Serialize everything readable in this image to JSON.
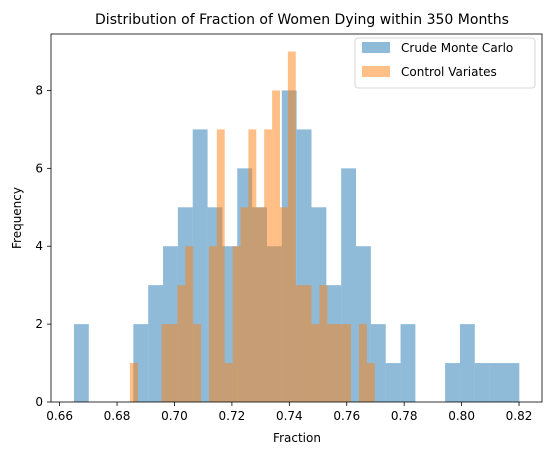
{
  "chart_data": {
    "type": "bar",
    "title": "Distribution of Fraction of Women Dying within 350 Months",
    "xlabel": "Fraction",
    "ylabel": "Frequency",
    "xlim": [
      0.657,
      0.828
    ],
    "ylim": [
      0,
      9.45
    ],
    "xticks": [
      "0.66",
      "0.68",
      "0.70",
      "0.72",
      "0.74",
      "0.76",
      "0.78",
      "0.80",
      "0.82"
    ],
    "xtick_values": [
      0.66,
      0.68,
      0.7,
      0.72,
      0.74,
      0.76,
      0.78,
      0.8,
      0.82
    ],
    "yticks": [
      "0",
      "2",
      "4",
      "6",
      "8"
    ],
    "ytick_values": [
      0,
      2,
      4,
      6,
      8
    ],
    "grid": false,
    "legend_position": "top-right",
    "series": [
      {
        "name": "Crude Monte Carlo",
        "color": "#1f77b4",
        "bin_start": 0.665,
        "bin_width": 0.00517,
        "counts": [
          2,
          0,
          0,
          0,
          2,
          3,
          4,
          5,
          7,
          5,
          4,
          6,
          5,
          4,
          8,
          7,
          5,
          3,
          6,
          4,
          2,
          1,
          2,
          0,
          0,
          1,
          2,
          1,
          1,
          1
        ]
      },
      {
        "name": "Control Variates",
        "color": "#ff7f0e",
        "bin_start": 0.6845,
        "bin_width": 0.00275,
        "counts": [
          1,
          0,
          0,
          0,
          2,
          2,
          3,
          4,
          2,
          0,
          4,
          7,
          1,
          4,
          5,
          7,
          5,
          7,
          8,
          5,
          9,
          3,
          3,
          2,
          3,
          2,
          2,
          2,
          0,
          2,
          1
        ]
      }
    ]
  }
}
